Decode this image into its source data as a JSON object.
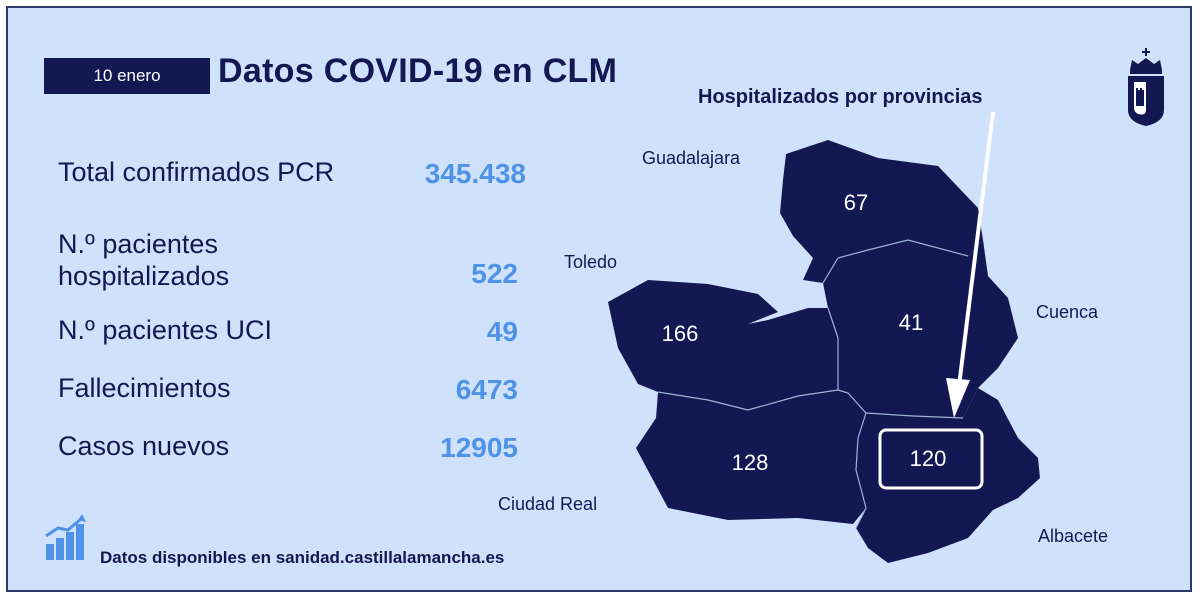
{
  "header": {
    "date": "10 enero",
    "title": "Datos COVID-19 en CLM"
  },
  "stats": [
    {
      "label": "Total confirmados PCR",
      "value": "345.438"
    },
    {
      "label": "N.º pacientes hospitalizados",
      "value": "522"
    },
    {
      "label": "N.º pacientes UCI",
      "value": "49"
    },
    {
      "label": "Fallecimientos",
      "value": "6473"
    },
    {
      "label": "Casos nuevos",
      "value": "12905"
    }
  ],
  "footer": {
    "text": "Datos disponibles en sanidad.castillalamancha.es",
    "icon": "bar-chart-growth-icon"
  },
  "map": {
    "title": "Hospitalizados por provincias",
    "provinces": [
      {
        "name": "Guadalajara",
        "value": "67"
      },
      {
        "name": "Toledo",
        "value": "166"
      },
      {
        "name": "Cuenca",
        "value": "41"
      },
      {
        "name": "Ciudad Real",
        "value": "128"
      },
      {
        "name": "Albacete",
        "value": "120"
      }
    ],
    "highlight": "Albacete"
  },
  "colors": {
    "background": "#cfe1fb",
    "navy": "#141852",
    "accent": "#4f93e8",
    "white": "#ffffff"
  },
  "logo": {
    "icon": "clm-coat-of-arms-icon"
  }
}
